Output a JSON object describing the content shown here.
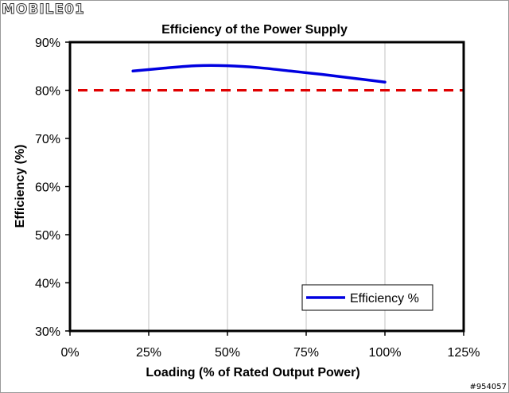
{
  "watermark": "MOBILE01",
  "image_id": "#954057",
  "colors": {
    "line": "#0000e0",
    "reference": "#e00000",
    "grid": "#c0c0c0",
    "axes": "#000000"
  },
  "chart_data": {
    "type": "line",
    "title": "Efficiency of the Power Supply",
    "xlabel": "Loading (% of Rated Output Power)",
    "ylabel": "Efficiency (%)",
    "xlim": [
      0,
      125
    ],
    "ylim": [
      30,
      90
    ],
    "x_ticks": [
      "0%",
      "25%",
      "50%",
      "75%",
      "100%",
      "125%"
    ],
    "y_ticks": [
      "30%",
      "40%",
      "50%",
      "60%",
      "70%",
      "80%",
      "90%"
    ],
    "grid": "vertical",
    "legend": {
      "position": "bottom-right",
      "entries": [
        "Efficiency %"
      ]
    },
    "series": [
      {
        "name": "Efficiency %",
        "x": [
          20,
          30,
          40,
          50,
          60,
          70,
          80,
          90,
          100
        ],
        "y": [
          84.0,
          84.6,
          85.1,
          85.1,
          84.7,
          84.0,
          83.3,
          82.5,
          81.7
        ]
      }
    ],
    "reference_line": {
      "y": 80,
      "style": "dashed"
    }
  }
}
